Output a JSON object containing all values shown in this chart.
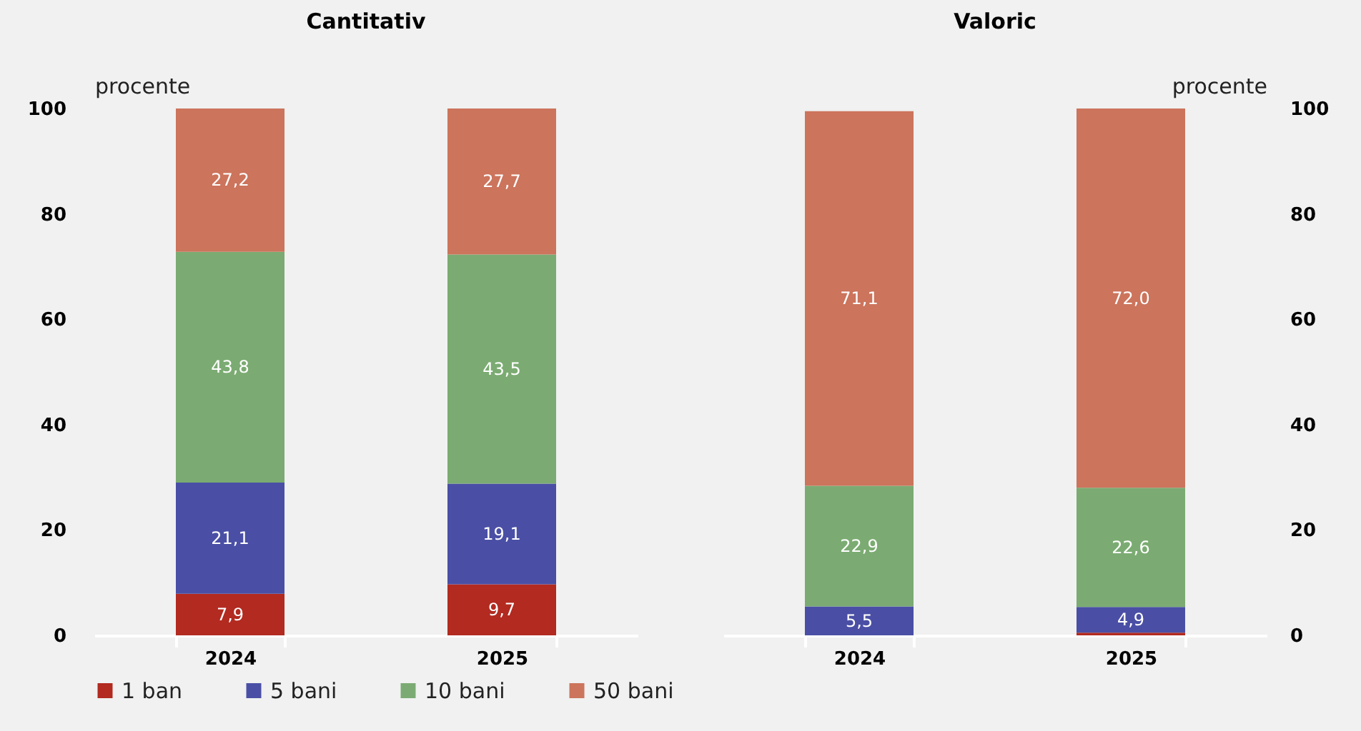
{
  "chart_data": [
    {
      "type": "bar",
      "title": "Cantitativ",
      "ylabel": "procente",
      "categories": [
        "2024",
        "2025"
      ],
      "stacked": true,
      "ylim": [
        0,
        100
      ],
      "yticks": [
        0,
        20,
        40,
        60,
        80,
        100
      ],
      "grid": false,
      "legend": "bottom",
      "series": [
        {
          "name": "1 ban",
          "color": "#b22a20",
          "values": [
            7.9,
            9.7
          ],
          "value_labels": [
            "7,9",
            "9,7"
          ]
        },
        {
          "name": "5 bani",
          "color": "#4a4fa5",
          "values": [
            21.1,
            19.1
          ],
          "value_labels": [
            "21,1",
            "19,1"
          ]
        },
        {
          "name": "10 bani",
          "color": "#7bab72",
          "values": [
            43.8,
            43.5
          ],
          "value_labels": [
            "43,8",
            "43,5"
          ]
        },
        {
          "name": "50 bani",
          "color": "#cc745c",
          "values": [
            27.2,
            27.7
          ],
          "value_labels": [
            "27,2",
            "27,7"
          ]
        }
      ]
    },
    {
      "type": "bar",
      "title": "Valoric",
      "ylabel": "procente",
      "categories": [
        "2024",
        "2025"
      ],
      "stacked": true,
      "ylim": [
        0,
        100
      ],
      "yticks": [
        0,
        20,
        40,
        60,
        80,
        100
      ],
      "grid": false,
      "legend": "bottom",
      "series": [
        {
          "name": "1 ban",
          "color": "#b22a20",
          "values": [
            null,
            0.5
          ],
          "value_labels": [
            null,
            null
          ]
        },
        {
          "name": "5 bani",
          "color": "#4a4fa5",
          "values": [
            5.5,
            4.9
          ],
          "value_labels": [
            "5,5",
            "4,9"
          ]
        },
        {
          "name": "10 bani",
          "color": "#7bab72",
          "values": [
            22.9,
            22.6
          ],
          "value_labels": [
            "22,9",
            "22,6"
          ]
        },
        {
          "name": "50 bani",
          "color": "#cc745c",
          "values": [
            71.1,
            72.0
          ],
          "value_labels": [
            "71,1",
            "72,0"
          ]
        }
      ]
    }
  ]
}
